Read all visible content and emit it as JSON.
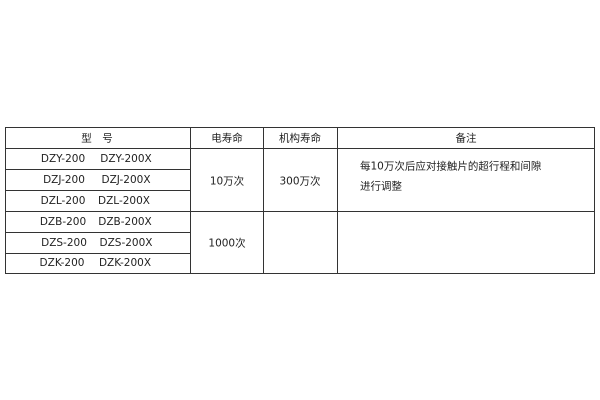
{
  "table": {
    "headers": [
      "型　号",
      "电寿命",
      "机构寿命",
      "备注"
    ],
    "models": [
      [
        "DZY-200",
        "DZY-200X"
      ],
      [
        "DZJ-200",
        "DZJ-200X"
      ],
      [
        "DZL-200",
        "DZL-200X"
      ],
      [
        "DZB-200",
        "DZB-200X"
      ],
      [
        "DZS-200",
        "DZS-200X"
      ],
      [
        "DZK-200",
        "DZK-200X"
      ]
    ],
    "electrical_life": [
      "10万次",
      "1000次"
    ],
    "mechanical_life": [
      "300万次",
      ""
    ],
    "remarks": [
      "每10万次后应对接触片的超行程和间隙",
      "进行调整"
    ]
  }
}
